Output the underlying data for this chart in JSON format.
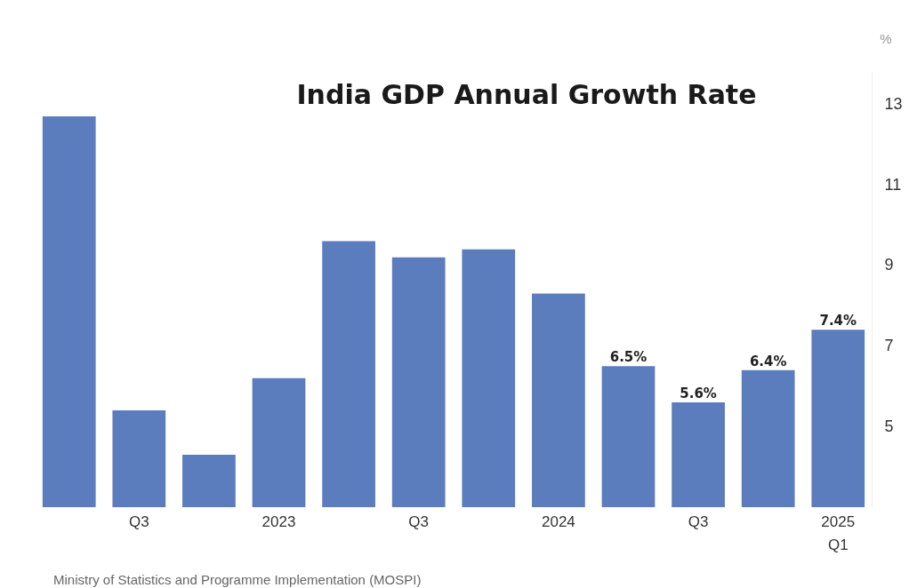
{
  "chart_data": {
    "type": "bar",
    "title": "India GDP Annual Growth Rate",
    "ylabel": "%",
    "categories": [
      null,
      "Q3",
      null,
      "2023",
      null,
      "Q3",
      null,
      "2024",
      null,
      "Q3",
      null,
      "2025\nQ1"
    ],
    "values": [
      12.7,
      5.4,
      4.3,
      6.2,
      9.6,
      9.2,
      9.4,
      8.3,
      6.5,
      5.6,
      6.4,
      7.4
    ],
    "value_labels": [
      null,
      null,
      null,
      null,
      null,
      null,
      null,
      null,
      "6.5%",
      "5.6%",
      "6.4%",
      "7.4%"
    ],
    "color": "#5b7dbd",
    "ylim": [
      3,
      13.8
    ],
    "yticks": [
      5,
      7,
      9,
      11,
      13
    ],
    "annotations": [
      "Ministry of Statistics and Programme Implementation (MOSPI)"
    ]
  }
}
